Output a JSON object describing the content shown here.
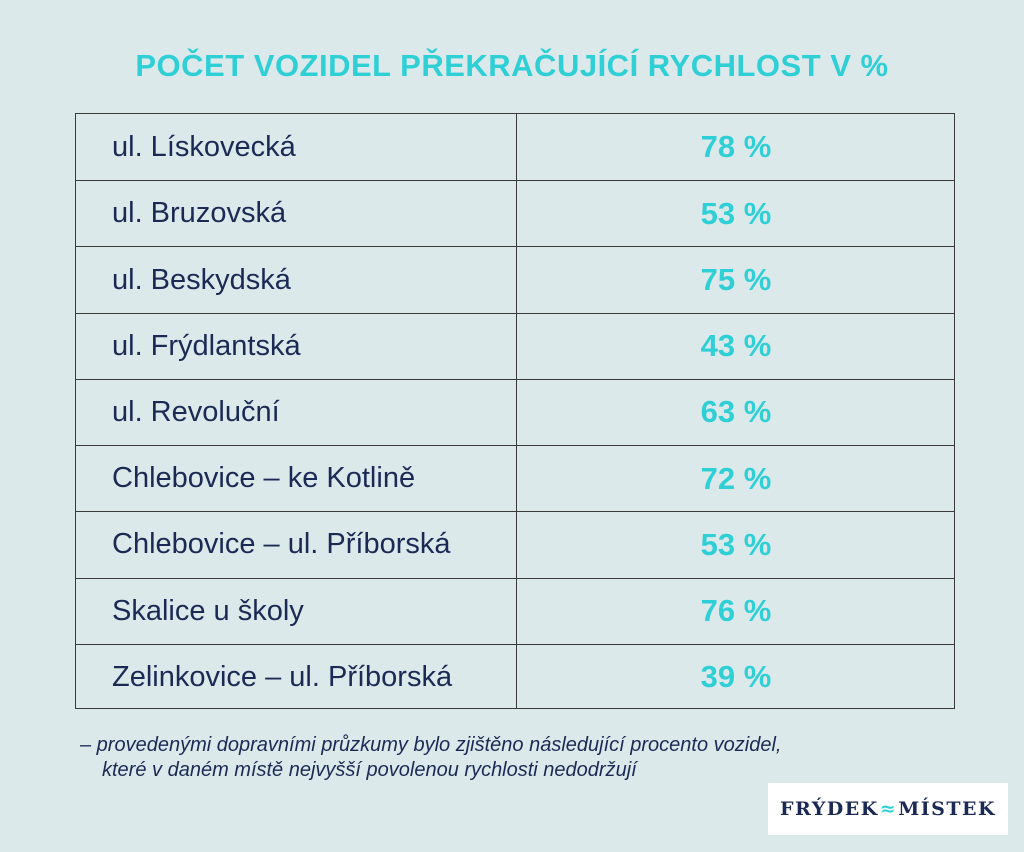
{
  "title": "POČET VOZIDEL PŘEKRAČUJÍCÍ RYCHLOST V %",
  "chart_data": {
    "type": "table",
    "title": "POČET VOZIDEL PŘEKRAČUJÍCÍ RYCHLOST V %",
    "rows": [
      {
        "location": "ul. Lískovecká",
        "value": 78,
        "label": "78 %"
      },
      {
        "location": "ul. Bruzovská",
        "value": 53,
        "label": "53 %"
      },
      {
        "location": "ul. Beskydská",
        "value": 75,
        "label": "75 %"
      },
      {
        "location": "ul. Frýdlantská",
        "value": 43,
        "label": "43 %"
      },
      {
        "location": "ul. Revoluční",
        "value": 63,
        "label": "63 %"
      },
      {
        "location": "Chlebovice – ke Kotlině",
        "value": 72,
        "label": "72 %"
      },
      {
        "location": "Chlebovice – ul. Příborská",
        "value": 53,
        "label": "53 %"
      },
      {
        "location": "Skalice u školy",
        "value": 76,
        "label": "76 %"
      },
      {
        "location": "Zelinkovice – ul. Příborská",
        "value": 39,
        "label": "39 %"
      }
    ]
  },
  "note": {
    "line1": "– provedenými dopravními průzkumy bylo zjištěno následující procento vozidel,",
    "line2": "které v daném místě nejvyšší povolenou rychlosti nedodržují"
  },
  "logo": {
    "left": "FRÝDEK",
    "sep": "≈",
    "right": "MÍSTEK"
  },
  "colors": {
    "background": "#dce9ea",
    "accent": "#2fcfd6",
    "text": "#1b2a55"
  }
}
